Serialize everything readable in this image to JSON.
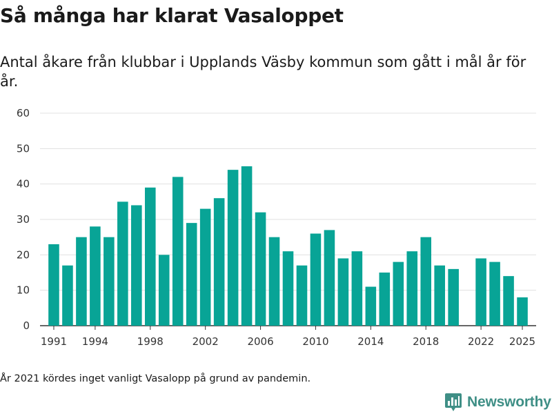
{
  "title": "Så många har klarat Vasaloppet",
  "subtitle": "Antal åkare från klubbar i Upplands Väsby kommun som gått i mål år för år.",
  "footnote": "År 2021 kördes inget vanligt Vasalopp på grund av pandemin.",
  "logo": {
    "text": "Newsworthy",
    "icon": "bar-chart-badge-icon",
    "color": "#3f8f86"
  },
  "colors": {
    "bar": "#08a496",
    "grid": "#e0e0e0",
    "axis": "#333333"
  },
  "chart_data": {
    "type": "bar",
    "title": "Så många har klarat Vasaloppet",
    "xlabel": "",
    "ylabel": "",
    "ylim": [
      0,
      60
    ],
    "yticks": [
      0,
      10,
      20,
      30,
      40,
      50,
      60
    ],
    "xlim": [
      1990,
      2026
    ],
    "xticks": [
      1991,
      1994,
      1998,
      2002,
      2006,
      2010,
      2014,
      2018,
      2022,
      2025
    ],
    "categories": [
      1991,
      1992,
      1993,
      1994,
      1995,
      1996,
      1997,
      1998,
      1999,
      2000,
      2001,
      2002,
      2003,
      2004,
      2005,
      2006,
      2007,
      2008,
      2009,
      2010,
      2011,
      2012,
      2013,
      2014,
      2015,
      2016,
      2017,
      2018,
      2019,
      2020,
      2022,
      2023,
      2024,
      2025
    ],
    "values": [
      23,
      17,
      25,
      28,
      25,
      35,
      34,
      39,
      20,
      42,
      29,
      33,
      36,
      44,
      45,
      32,
      25,
      21,
      17,
      26,
      27,
      19,
      21,
      11,
      15,
      18,
      21,
      25,
      17,
      16,
      19,
      18,
      14,
      8
    ]
  }
}
